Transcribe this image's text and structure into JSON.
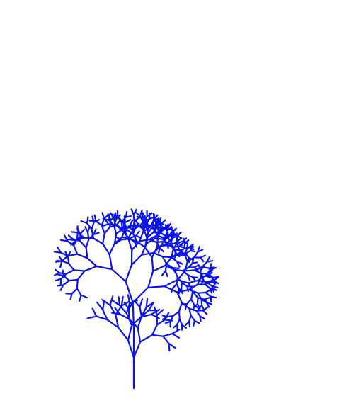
{
  "figure": {
    "kind": "fractal-tree",
    "stroke_color": "#0a14e6",
    "background": "#ffffff"
  }
}
